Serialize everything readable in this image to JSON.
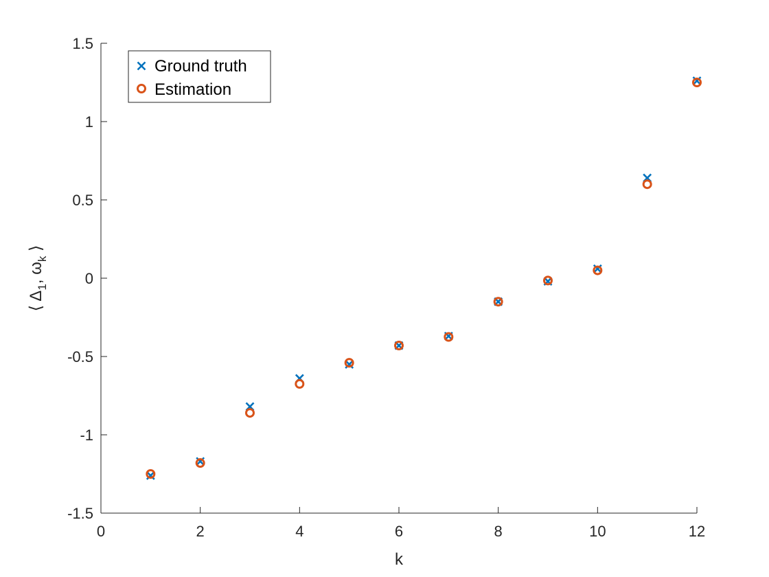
{
  "chart_data": {
    "type": "scatter",
    "xlabel": "k",
    "ylabel": "⟨ Δ₁, ωₖ ⟩",
    "ylabel_parts": {
      "open": "⟨",
      "delta": "Δ",
      "delta_sub": "1",
      "sep": ",",
      "omega": "ω",
      "omega_sub": "k",
      "close": "⟩"
    },
    "xlim": [
      0,
      12
    ],
    "ylim": [
      -1.5,
      1.5
    ],
    "xticks": [
      0,
      2,
      4,
      6,
      8,
      10,
      12
    ],
    "yticks": [
      -1.5,
      -1,
      -0.5,
      0,
      0.5,
      1,
      1.5
    ],
    "xtick_labels": [
      "0",
      "2",
      "4",
      "6",
      "8",
      "10",
      "12"
    ],
    "ytick_labels": [
      "-1.5",
      "-1",
      "-0.5",
      "0",
      "0.5",
      "1",
      "1.5"
    ],
    "grid": false,
    "legend_position": "top-left",
    "x": [
      1,
      2,
      3,
      4,
      5,
      6,
      7,
      8,
      9,
      10,
      11,
      12
    ],
    "series": [
      {
        "name": "Ground truth",
        "marker": "x",
        "color": "#0072BD",
        "values": [
          -1.26,
          -1.17,
          -0.82,
          -0.64,
          -0.55,
          -0.43,
          -0.37,
          -0.15,
          -0.02,
          0.06,
          0.64,
          1.26
        ]
      },
      {
        "name": "Estimation",
        "marker": "o",
        "color": "#D95319",
        "values": [
          -1.25,
          -1.18,
          -0.86,
          -0.675,
          -0.54,
          -0.43,
          -0.375,
          -0.15,
          -0.015,
          0.05,
          0.6,
          1.25
        ]
      }
    ]
  }
}
